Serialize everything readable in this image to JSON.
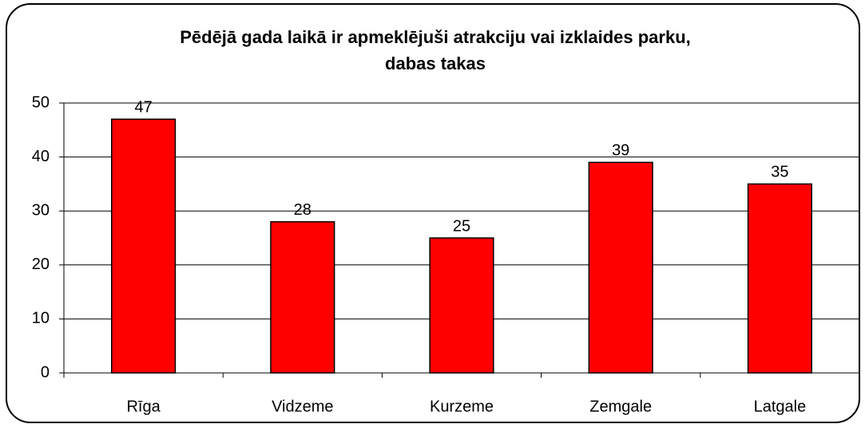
{
  "chart_data": {
    "type": "bar",
    "title": [
      "Pēdējā gada laikā ir apmeklējuši atrakciju vai izklaides parku,",
      "dabas takas"
    ],
    "categories": [
      "Rīga",
      "Vidzeme",
      "Kurzeme",
      "Zemgale",
      "Latgale"
    ],
    "values": [
      47,
      28,
      25,
      39,
      35
    ],
    "color": "#ff0000",
    "ylim": [
      0,
      50
    ],
    "yticks": [
      0,
      10,
      20,
      30,
      40,
      50
    ],
    "grid": true
  }
}
